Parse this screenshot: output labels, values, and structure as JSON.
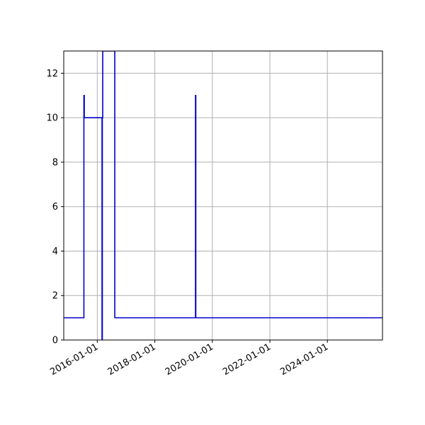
{
  "chart_data": {
    "type": "line",
    "title": "",
    "xlabel": "",
    "ylabel": "",
    "grid": true,
    "xlim": [
      "2014-11-01",
      "2025-12-01"
    ],
    "ylim": [
      0,
      13
    ],
    "x_ticks": [
      "2016-01-01",
      "2018-01-01",
      "2020-01-01",
      "2022-01-01",
      "2024-01-01"
    ],
    "y_ticks": [
      0,
      2,
      4,
      6,
      8,
      10,
      12
    ],
    "series": [
      {
        "color": "#0000cc",
        "step": true,
        "x": [
          "2014-11-01",
          "2015-07-15",
          "2015-07-15",
          "2015-07-20",
          "2015-07-20",
          "2016-03-01",
          "2016-03-01",
          "2016-03-05",
          "2016-03-05",
          "2016-03-10",
          "2016-03-10",
          "2016-08-10",
          "2016-08-10",
          "2019-06-01",
          "2019-06-01",
          "2019-06-05",
          "2019-06-05",
          "2025-12-01"
        ],
        "y": [
          1,
          1,
          11,
          11,
          10,
          10,
          0,
          0,
          10,
          10,
          13,
          13,
          1,
          1,
          11,
          11,
          1,
          1
        ]
      }
    ]
  }
}
